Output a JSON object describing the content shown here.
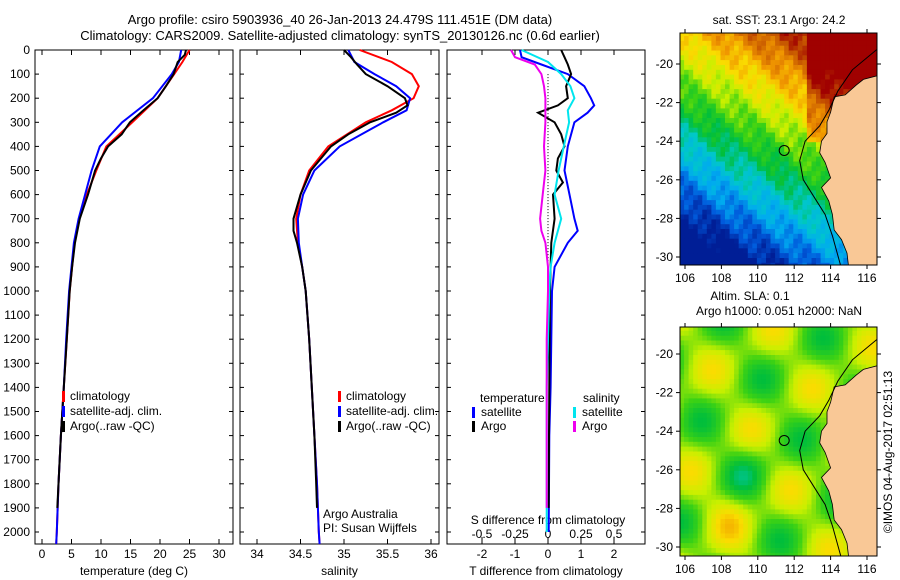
{
  "title": {
    "line1": "Argo profile: csiro 5903936_40 26-Jan-2013 24.479S 111.451E (DM data)",
    "line2": "Climatology: CARS2009. Satellite-adjusted climatology: synTS_20130126.nc (0.6d earlier)"
  },
  "colors": {
    "climatology": "#ff0000",
    "satellite": "#0000ff",
    "argo": "#000000",
    "sal_satellite": "#00e5ee",
    "sal_argo": "#ee00ee",
    "land": "#f9c896"
  },
  "depth_axis": {
    "ticks": [
      0,
      100,
      200,
      300,
      400,
      500,
      600,
      700,
      800,
      900,
      1000,
      1100,
      1200,
      1300,
      1400,
      1500,
      1600,
      1700,
      1800,
      1900,
      2000
    ],
    "ylim": [
      0,
      2050
    ]
  },
  "chart_data": [
    {
      "type": "line",
      "panel": "temperature",
      "xlabel": "temperature (deg C)",
      "ylabel": "depth",
      "xlim": [
        -1.2,
        32.4
      ],
      "xticks": [
        0,
        5,
        10,
        15,
        20,
        25,
        30
      ],
      "legend": [
        "climatology",
        "satellite-adj. clim.",
        "Argo(..raw -QC)"
      ],
      "series": [
        {
          "name": "climatology",
          "color": "#ff0000",
          "depth": [
            0,
            50,
            100,
            200,
            300,
            400,
            500,
            600,
            700,
            800,
            900,
            1000,
            1200,
            1400,
            1600,
            1800,
            2000,
            2050
          ],
          "values": [
            25.0,
            23.8,
            22.4,
            19.6,
            15.3,
            10.9,
            9.2,
            7.6,
            6.3,
            5.5,
            5.1,
            4.7,
            4.2,
            3.7,
            3.2,
            2.8,
            2.5,
            2.4
          ]
        },
        {
          "name": "satellite-adj. clim.",
          "color": "#0000ff",
          "depth": [
            0,
            50,
            100,
            200,
            300,
            400,
            500,
            600,
            700,
            800,
            900,
            1000,
            1200,
            1400,
            1600,
            1800,
            2000,
            2050
          ],
          "values": [
            23.6,
            23.2,
            22.0,
            18.8,
            13.6,
            9.8,
            8.4,
            7.3,
            6.2,
            5.4,
            5.0,
            4.6,
            4.1,
            3.7,
            3.2,
            2.8,
            2.5,
            2.4
          ]
        },
        {
          "name": "Argo(..raw -QC)",
          "color": "#000000",
          "depth": [
            0,
            20,
            50,
            100,
            150,
            200,
            250,
            300,
            350,
            400,
            450,
            500,
            550,
            600,
            700,
            800,
            900,
            1000,
            1200,
            1400,
            1600,
            1800,
            1900
          ],
          "values": [
            24.4,
            24.2,
            23.0,
            22.3,
            21.0,
            19.6,
            17.2,
            14.9,
            13.5,
            11.2,
            10.0,
            9.0,
            8.4,
            7.8,
            6.4,
            5.6,
            5.1,
            4.7,
            4.2,
            3.7,
            3.2,
            2.8,
            2.6
          ]
        }
      ]
    },
    {
      "type": "line",
      "panel": "salinity",
      "xlabel": "salinity",
      "xlim": [
        33.8,
        36.09
      ],
      "xticks": [
        34,
        34.5,
        35,
        35.5,
        36
      ],
      "legend": [
        "climatology",
        "satellite-adj. clim.",
        "Argo(..raw -QC)"
      ],
      "annotation": [
        "Argo Australia",
        "PI: Susan Wijffels"
      ],
      "series": [
        {
          "name": "climatology",
          "color": "#ff0000",
          "depth": [
            0,
            50,
            100,
            150,
            200,
            250,
            300,
            400,
            500,
            600,
            700,
            800,
            900,
            1000,
            1200,
            1400,
            1600,
            1800,
            2000,
            2050
          ],
          "values": [
            35.18,
            35.55,
            35.78,
            35.86,
            35.8,
            35.55,
            35.25,
            34.82,
            34.6,
            34.5,
            34.45,
            34.47,
            34.52,
            34.56,
            34.6,
            34.63,
            34.66,
            34.69,
            34.71,
            34.72
          ]
        },
        {
          "name": "satellite-adj. clim.",
          "color": "#0000ff",
          "depth": [
            0,
            50,
            100,
            150,
            200,
            250,
            300,
            400,
            500,
            600,
            700,
            800,
            900,
            1000,
            1200,
            1400,
            1600,
            1800,
            2000,
            2050
          ],
          "values": [
            35.05,
            35.12,
            35.35,
            35.6,
            35.76,
            35.72,
            35.45,
            34.95,
            34.66,
            34.53,
            34.47,
            34.48,
            34.52,
            34.56,
            34.6,
            34.63,
            34.66,
            34.69,
            34.71,
            34.72
          ]
        },
        {
          "name": "Argo(..raw -QC)",
          "color": "#000000",
          "depth": [
            0,
            30,
            60,
            100,
            150,
            200,
            230,
            260,
            300,
            350,
            400,
            500,
            600,
            700,
            750,
            800,
            900,
            1000,
            1200,
            1400,
            1600,
            1800,
            1900
          ],
          "values": [
            35.0,
            35.08,
            35.15,
            35.25,
            35.5,
            35.7,
            35.73,
            35.6,
            35.3,
            35.05,
            34.85,
            34.62,
            34.5,
            34.42,
            34.42,
            34.46,
            34.52,
            34.56,
            34.6,
            34.63,
            34.66,
            34.68,
            34.69
          ]
        }
      ]
    },
    {
      "type": "line",
      "panel": "difference",
      "xlabel": "T difference from climatology",
      "xlim": [
        -3.06,
        2.94
      ],
      "xticks": [
        -2,
        -1,
        0,
        1,
        2
      ],
      "x2label": "S difference from climatology",
      "x2lim": [
        -0.765,
        0.735
      ],
      "x2ticks": [
        -0.5,
        -0.25,
        0,
        0.25,
        0.5
      ],
      "x2ticklabels": [
        "-0.5",
        "-0.25",
        "0",
        "0.25",
        "0.5"
      ],
      "legend_temperature": {
        "heading": "temperature",
        "items": [
          "satellite",
          "Argo"
        ]
      },
      "legend_salinity": {
        "heading": "salinity",
        "items": [
          "satellite",
          "Argo"
        ]
      },
      "series": [
        {
          "name": "T satellite",
          "axis": "T",
          "color": "#0000ff",
          "depth": [
            0,
            30,
            60,
            100,
            150,
            200,
            230,
            260,
            300,
            400,
            500,
            600,
            700,
            750,
            800,
            900,
            1000,
            1200,
            1400,
            1600,
            2000
          ],
          "values": [
            -0.85,
            -0.8,
            -0.2,
            0.6,
            1.1,
            1.3,
            1.4,
            1.2,
            0.8,
            0.6,
            0.5,
            0.65,
            0.8,
            0.9,
            0.6,
            0.2,
            0.12,
            0.1,
            0.08,
            0.04,
            0.02
          ]
        },
        {
          "name": "T Argo",
          "axis": "T",
          "color": "#000000",
          "depth": [
            0,
            30,
            60,
            100,
            150,
            200,
            230,
            260,
            300,
            350,
            400,
            450,
            500,
            550,
            600,
            700,
            800,
            900,
            1000,
            1200,
            1600,
            1900
          ],
          "values": [
            0.4,
            0.5,
            0.6,
            0.7,
            0.55,
            0.6,
            0.3,
            -0.3,
            0.2,
            0.4,
            0.5,
            0.3,
            0.25,
            0.45,
            0.15,
            0.2,
            0.1,
            0.08,
            0.06,
            0.05,
            0.03,
            0.02
          ]
        },
        {
          "name": "S satellite",
          "axis": "S",
          "color": "#00e5ee",
          "depth": [
            0,
            50,
            100,
            150,
            200,
            250,
            300,
            400,
            500,
            600,
            700,
            800,
            900,
            1000,
            1200,
            1400,
            2000
          ],
          "values": [
            -0.2,
            0.0,
            0.1,
            0.17,
            0.2,
            0.15,
            0.16,
            0.12,
            0.08,
            0.05,
            0.1,
            0.05,
            0.02,
            0.01,
            0.0,
            -0.01,
            -0.01
          ]
        },
        {
          "name": "S Argo",
          "axis": "S",
          "color": "#ee00ee",
          "depth": [
            0,
            30,
            60,
            100,
            150,
            200,
            300,
            400,
            500,
            600,
            700,
            750,
            800,
            900,
            1000,
            1200,
            1500,
            1900
          ],
          "values": [
            -0.28,
            -0.25,
            -0.1,
            -0.05,
            -0.03,
            -0.02,
            -0.02,
            -0.03,
            -0.02,
            -0.04,
            -0.06,
            -0.05,
            -0.02,
            0.0,
            0.0,
            -0.01,
            -0.01,
            -0.01
          ]
        }
      ]
    }
  ],
  "maps": {
    "sst": {
      "title": "sat. SST: 23.1 Argo: 24.2"
    },
    "sla": {
      "title1": "Altim. SLA: 0.1",
      "title2": "Argo h1000: 0.051 h2000: NaN"
    },
    "lon_ticks": [
      106,
      108,
      110,
      112,
      114,
      116
    ],
    "lat_ticks": [
      -20,
      -22,
      -24,
      -26,
      -28,
      -30
    ],
    "float_position": {
      "lon": 111.451,
      "lat": -24.479
    }
  },
  "credit": "©IMOS 04-Aug-2017 02:51:13"
}
